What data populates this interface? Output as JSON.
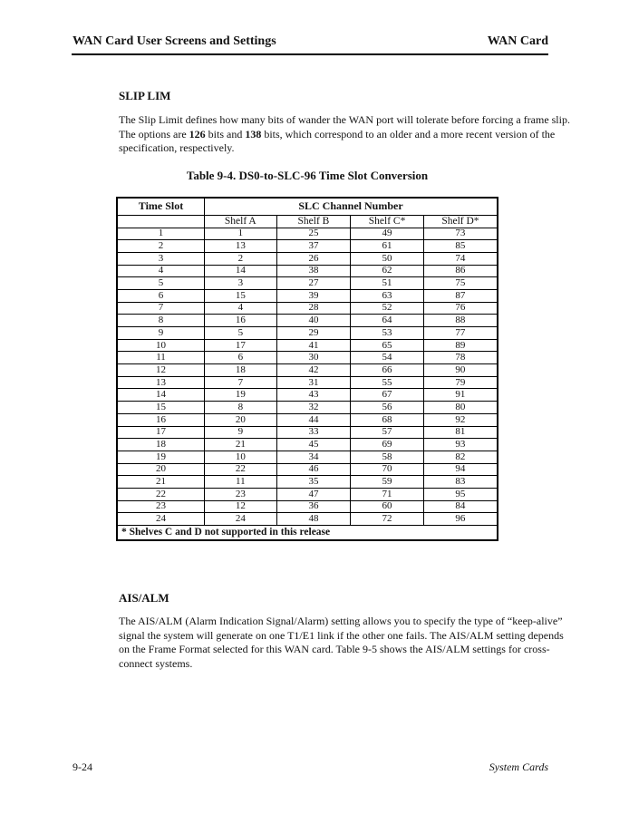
{
  "header": {
    "left_title": "WAN Card User Screens and Settings",
    "right_title": "WAN Card"
  },
  "slip_lim": {
    "heading": "SLIP LIM",
    "para_pre": "The Slip Limit defines how many bits of wander the WAN port will tolerate before forcing a frame slip. The options are ",
    "para_bold1": "126",
    "para_mid": " bits and ",
    "para_bold2": "138",
    "para_post": " bits, which correspond to an older and a more recent version of the specification, respectively."
  },
  "table": {
    "title": "Table 9-4. DS0-to-SLC-96 Time Slot Conversion",
    "corner_header": "Time Slot",
    "group_header": "SLC Channel Number",
    "sub_headers": [
      "Shelf A",
      "Shelf B",
      "Shelf C*",
      "Shelf D*"
    ],
    "rows": [
      [
        1,
        1,
        25,
        49,
        73
      ],
      [
        2,
        13,
        37,
        61,
        85
      ],
      [
        3,
        2,
        26,
        50,
        74
      ],
      [
        4,
        14,
        38,
        62,
        86
      ],
      [
        5,
        3,
        27,
        51,
        75
      ],
      [
        6,
        15,
        39,
        63,
        87
      ],
      [
        7,
        4,
        28,
        52,
        76
      ],
      [
        8,
        16,
        40,
        64,
        88
      ],
      [
        9,
        5,
        29,
        53,
        77
      ],
      [
        10,
        17,
        41,
        65,
        89
      ],
      [
        11,
        6,
        30,
        54,
        78
      ],
      [
        12,
        18,
        42,
        66,
        90
      ],
      [
        13,
        7,
        31,
        55,
        79
      ],
      [
        14,
        19,
        43,
        67,
        91
      ],
      [
        15,
        8,
        32,
        56,
        80
      ],
      [
        16,
        20,
        44,
        68,
        92
      ],
      [
        17,
        9,
        33,
        57,
        81
      ],
      [
        18,
        21,
        45,
        69,
        93
      ],
      [
        19,
        10,
        34,
        58,
        82
      ],
      [
        20,
        22,
        46,
        70,
        94
      ],
      [
        21,
        11,
        35,
        59,
        83
      ],
      [
        22,
        23,
        47,
        71,
        95
      ],
      [
        23,
        12,
        36,
        60,
        84
      ],
      [
        24,
        24,
        48,
        72,
        96
      ]
    ],
    "footnote": "* Shelves C and D not supported in this release"
  },
  "ais_alm": {
    "heading": "AIS/ALM",
    "para": "The AIS/ALM (Alarm Indication Signal/Alarm) setting allows you to specify the type of “keep-alive” signal the system will generate on one T1/E1 link if the other one fails. The AIS/ALM setting depends on the Frame Format selected for this WAN card. Table 9-5 shows the AIS/ALM settings for cross-connect systems."
  },
  "footer": {
    "page_number": "9-24",
    "right_text": "System Cards"
  },
  "colors": {
    "text": "#131313",
    "border": "#000000",
    "background": "#ffffff"
  }
}
